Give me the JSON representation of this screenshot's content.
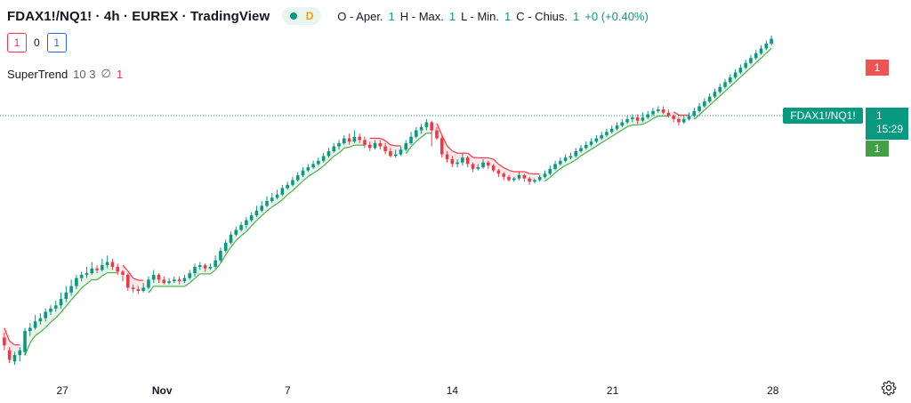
{
  "header": {
    "symbol": "FDAX1!/NQ1! · 4h · EUREX · TradingView",
    "badge": "D",
    "ohlc": {
      "open_label": "O - Aper.",
      "open_val": "1",
      "high_label": "H - Max.",
      "high_val": "1",
      "low_label": "L - Min.",
      "low_val": "1",
      "close_label": "C - Chius.",
      "close_val": "1",
      "change": "+0 (+0.40%)"
    }
  },
  "toolbar": {
    "sell": "1",
    "spread": "0",
    "buy": "1"
  },
  "indicator": {
    "name": "SuperTrend",
    "params": "10 3",
    "null_symbol": "∅",
    "value": "1"
  },
  "price_scale": {
    "upper_tag": "1",
    "symbol_tag": "FDAX1!/NQ1!",
    "price_tag": "1",
    "countdown": "15:29",
    "lower_tag": "1"
  },
  "colors": {
    "up": "#089981",
    "down": "#f23645",
    "st_up": "#4caf50",
    "st_down": "#f23645",
    "up_fill": "#e8f5e9",
    "down_fill": "#fde8ea"
  },
  "chart_data": {
    "type": "candlestick",
    "xaxis_labels": [
      {
        "i": 14,
        "label": "27"
      },
      {
        "i": 37,
        "label": "Nov"
      },
      {
        "i": 66,
        "label": "7"
      },
      {
        "i": 104,
        "label": "14"
      },
      {
        "i": 141,
        "label": "21"
      },
      {
        "i": 178,
        "label": "28"
      }
    ],
    "x_extent": [
      0,
      207
    ],
    "y_range": [
      0,
      1
    ],
    "current_value": 0.77,
    "candles": [
      [
        0.21,
        0.16,
        0.13,
        0.24
      ],
      [
        0.13,
        0.07,
        0.05,
        0.15
      ],
      [
        0.06,
        0.1,
        0.04,
        0.12
      ],
      [
        0.1,
        0.13,
        0.06,
        0.15
      ],
      [
        0.12,
        0.25,
        0.1,
        0.27
      ],
      [
        0.25,
        0.27,
        0.22,
        0.3
      ],
      [
        0.27,
        0.31,
        0.26,
        0.35
      ],
      [
        0.31,
        0.33,
        0.29,
        0.36
      ],
      [
        0.33,
        0.37,
        0.31,
        0.39
      ],
      [
        0.37,
        0.39,
        0.35,
        0.41
      ],
      [
        0.39,
        0.41,
        0.37,
        0.44
      ],
      [
        0.41,
        0.45,
        0.39,
        0.49
      ],
      [
        0.45,
        0.49,
        0.43,
        0.53
      ],
      [
        0.49,
        0.53,
        0.47,
        0.57
      ],
      [
        0.53,
        0.58,
        0.51,
        0.6
      ],
      [
        0.58,
        0.6,
        0.56,
        0.62
      ],
      [
        0.6,
        0.61,
        0.58,
        0.65
      ],
      [
        0.61,
        0.64,
        0.6,
        0.68
      ],
      [
        0.64,
        0.63,
        0.61,
        0.66
      ],
      [
        0.63,
        0.66,
        0.62,
        0.7
      ],
      [
        0.66,
        0.68,
        0.64,
        0.72
      ],
      [
        0.68,
        0.65,
        0.63,
        0.7
      ],
      [
        0.65,
        0.62,
        0.6,
        0.67
      ],
      [
        0.62,
        0.6,
        0.56,
        0.63
      ],
      [
        0.6,
        0.52,
        0.5,
        0.61
      ],
      [
        0.52,
        0.51,
        0.49,
        0.54
      ],
      [
        0.51,
        0.5,
        0.48,
        0.53
      ],
      [
        0.5,
        0.52,
        0.49,
        0.55
      ],
      [
        0.52,
        0.57,
        0.51,
        0.59
      ],
      [
        0.57,
        0.6,
        0.55,
        0.63
      ],
      [
        0.6,
        0.57,
        0.55,
        0.61
      ],
      [
        0.57,
        0.55,
        0.54,
        0.59
      ],
      [
        0.55,
        0.56,
        0.54,
        0.58
      ],
      [
        0.56,
        0.57,
        0.55,
        0.59
      ],
      [
        0.57,
        0.56,
        0.54,
        0.59
      ],
      [
        0.56,
        0.58,
        0.55,
        0.6
      ],
      [
        0.58,
        0.61,
        0.57,
        0.63
      ],
      [
        0.61,
        0.65,
        0.59,
        0.67
      ],
      [
        0.65,
        0.66,
        0.63,
        0.68
      ],
      [
        0.66,
        0.64,
        0.62,
        0.67
      ],
      [
        0.64,
        0.65,
        0.63,
        0.67
      ],
      [
        0.65,
        0.69,
        0.64,
        0.72
      ],
      [
        0.69,
        0.75,
        0.68,
        0.77
      ],
      [
        0.75,
        0.8,
        0.74,
        0.82
      ],
      [
        0.8,
        0.85,
        0.79,
        0.87
      ],
      [
        0.85,
        0.88,
        0.84,
        0.9
      ],
      [
        0.88,
        0.91,
        0.87,
        0.93
      ],
      [
        0.91,
        0.94,
        0.89,
        0.96
      ],
      [
        0.94,
        0.97,
        0.93,
        0.99
      ],
      [
        0.97,
        1.0,
        0.96,
        1.03
      ],
      [
        1.0,
        1.03,
        0.99,
        1.06
      ],
      [
        1.03,
        1.06,
        1.02,
        1.09
      ],
      [
        1.06,
        1.08,
        1.05,
        1.11
      ],
      [
        1.08,
        1.1,
        1.07,
        1.13
      ],
      [
        1.1,
        1.14,
        1.09,
        1.16
      ],
      [
        1.14,
        1.16,
        1.13,
        1.18
      ],
      [
        1.16,
        1.19,
        1.15,
        1.21
      ],
      [
        1.19,
        1.22,
        1.18,
        1.24
      ],
      [
        1.22,
        1.25,
        1.21,
        1.27
      ],
      [
        1.25,
        1.27,
        1.24,
        1.29
      ],
      [
        1.27,
        1.29,
        1.26,
        1.31
      ],
      [
        1.29,
        1.31,
        1.28,
        1.33
      ],
      [
        1.31,
        1.34,
        1.3,
        1.36
      ],
      [
        1.34,
        1.37,
        1.33,
        1.39
      ],
      [
        1.37,
        1.4,
        1.36,
        1.42
      ],
      [
        1.4,
        1.42,
        1.38,
        1.44
      ],
      [
        1.42,
        1.45,
        1.41,
        1.47
      ],
      [
        1.45,
        1.43,
        1.41,
        1.48
      ],
      [
        1.43,
        1.46,
        1.42,
        1.5
      ],
      [
        1.46,
        1.44,
        1.42,
        1.48
      ],
      [
        1.44,
        1.41,
        1.39,
        1.46
      ],
      [
        1.41,
        1.39,
        1.37,
        1.43
      ],
      [
        1.39,
        1.42,
        1.38,
        1.44
      ],
      [
        1.42,
        1.4,
        1.38,
        1.44
      ],
      [
        1.4,
        1.37,
        1.35,
        1.42
      ],
      [
        1.37,
        1.34,
        1.33,
        1.39
      ],
      [
        1.34,
        1.35,
        1.33,
        1.38
      ],
      [
        1.35,
        1.38,
        1.34,
        1.4
      ],
      [
        1.38,
        1.42,
        1.37,
        1.44
      ],
      [
        1.42,
        1.46,
        1.41,
        1.49
      ],
      [
        1.46,
        1.5,
        1.45,
        1.52
      ],
      [
        1.5,
        1.52,
        1.48,
        1.54
      ],
      [
        1.52,
        1.55,
        1.5,
        1.57
      ],
      [
        1.55,
        1.5,
        1.4,
        1.56
      ],
      [
        1.5,
        1.45,
        1.44,
        1.52
      ],
      [
        1.45,
        1.35,
        1.33,
        1.47
      ],
      [
        1.35,
        1.32,
        1.3,
        1.37
      ],
      [
        1.32,
        1.29,
        1.27,
        1.34
      ],
      [
        1.29,
        1.3,
        1.27,
        1.32
      ],
      [
        1.3,
        1.33,
        1.28,
        1.36
      ],
      [
        1.33,
        1.29,
        1.27,
        1.34
      ],
      [
        1.29,
        1.26,
        1.24,
        1.3
      ],
      [
        1.26,
        1.27,
        1.25,
        1.29
      ],
      [
        1.27,
        1.3,
        1.26,
        1.32
      ],
      [
        1.3,
        1.28,
        1.26,
        1.31
      ],
      [
        1.28,
        1.25,
        1.24,
        1.29
      ],
      [
        1.25,
        1.23,
        1.21,
        1.26
      ],
      [
        1.23,
        1.21,
        1.19,
        1.24
      ],
      [
        1.21,
        1.19,
        1.18,
        1.22
      ],
      [
        1.19,
        1.2,
        1.18,
        1.21
      ],
      [
        1.2,
        1.22,
        1.19,
        1.24
      ],
      [
        1.22,
        1.2,
        1.18,
        1.23
      ],
      [
        1.2,
        1.18,
        1.16,
        1.21
      ],
      [
        1.18,
        1.19,
        1.17,
        1.2
      ],
      [
        1.19,
        1.21,
        1.18,
        1.22
      ],
      [
        1.21,
        1.23,
        1.2,
        1.25
      ],
      [
        1.23,
        1.26,
        1.22,
        1.28
      ],
      [
        1.26,
        1.29,
        1.25,
        1.31
      ],
      [
        1.29,
        1.31,
        1.28,
        1.33
      ],
      [
        1.31,
        1.33,
        1.3,
        1.35
      ],
      [
        1.33,
        1.34,
        1.32,
        1.36
      ],
      [
        1.34,
        1.37,
        1.33,
        1.39
      ],
      [
        1.37,
        1.39,
        1.36,
        1.41
      ],
      [
        1.39,
        1.41,
        1.38,
        1.43
      ],
      [
        1.41,
        1.43,
        1.4,
        1.45
      ],
      [
        1.43,
        1.45,
        1.42,
        1.47
      ],
      [
        1.45,
        1.47,
        1.44,
        1.49
      ],
      [
        1.47,
        1.49,
        1.46,
        1.51
      ],
      [
        1.49,
        1.51,
        1.48,
        1.53
      ],
      [
        1.51,
        1.53,
        1.5,
        1.55
      ],
      [
        1.53,
        1.55,
        1.52,
        1.57
      ],
      [
        1.55,
        1.57,
        1.54,
        1.59
      ],
      [
        1.57,
        1.58,
        1.55,
        1.6
      ],
      [
        1.58,
        1.56,
        1.54,
        1.6
      ],
      [
        1.56,
        1.58,
        1.55,
        1.61
      ],
      [
        1.58,
        1.6,
        1.57,
        1.62
      ],
      [
        1.6,
        1.62,
        1.59,
        1.64
      ],
      [
        1.62,
        1.63,
        1.61,
        1.65
      ],
      [
        1.63,
        1.61,
        1.6,
        1.65
      ],
      [
        1.61,
        1.59,
        1.58,
        1.63
      ],
      [
        1.59,
        1.57,
        1.55,
        1.6
      ],
      [
        1.57,
        1.55,
        1.53,
        1.58
      ],
      [
        1.55,
        1.57,
        1.54,
        1.59
      ],
      [
        1.57,
        1.59,
        1.56,
        1.61
      ],
      [
        1.59,
        1.62,
        1.58,
        1.64
      ],
      [
        1.62,
        1.65,
        1.61,
        1.67
      ],
      [
        1.65,
        1.68,
        1.64,
        1.7
      ],
      [
        1.68,
        1.71,
        1.67,
        1.73
      ],
      [
        1.71,
        1.74,
        1.7,
        1.76
      ],
      [
        1.74,
        1.77,
        1.73,
        1.79
      ],
      [
        1.77,
        1.8,
        1.76,
        1.82
      ],
      [
        1.8,
        1.83,
        1.79,
        1.85
      ],
      [
        1.83,
        1.86,
        1.82,
        1.88
      ],
      [
        1.86,
        1.89,
        1.85,
        1.91
      ],
      [
        1.89,
        1.92,
        1.88,
        1.94
      ],
      [
        1.92,
        1.95,
        1.91,
        1.97
      ],
      [
        1.95,
        1.98,
        1.94,
        2.0
      ],
      [
        1.98,
        2.01,
        1.97,
        2.03
      ],
      [
        2.01,
        2.04,
        2.0,
        2.06
      ],
      [
        2.04,
        2.07,
        2.03,
        2.09
      ]
    ]
  }
}
